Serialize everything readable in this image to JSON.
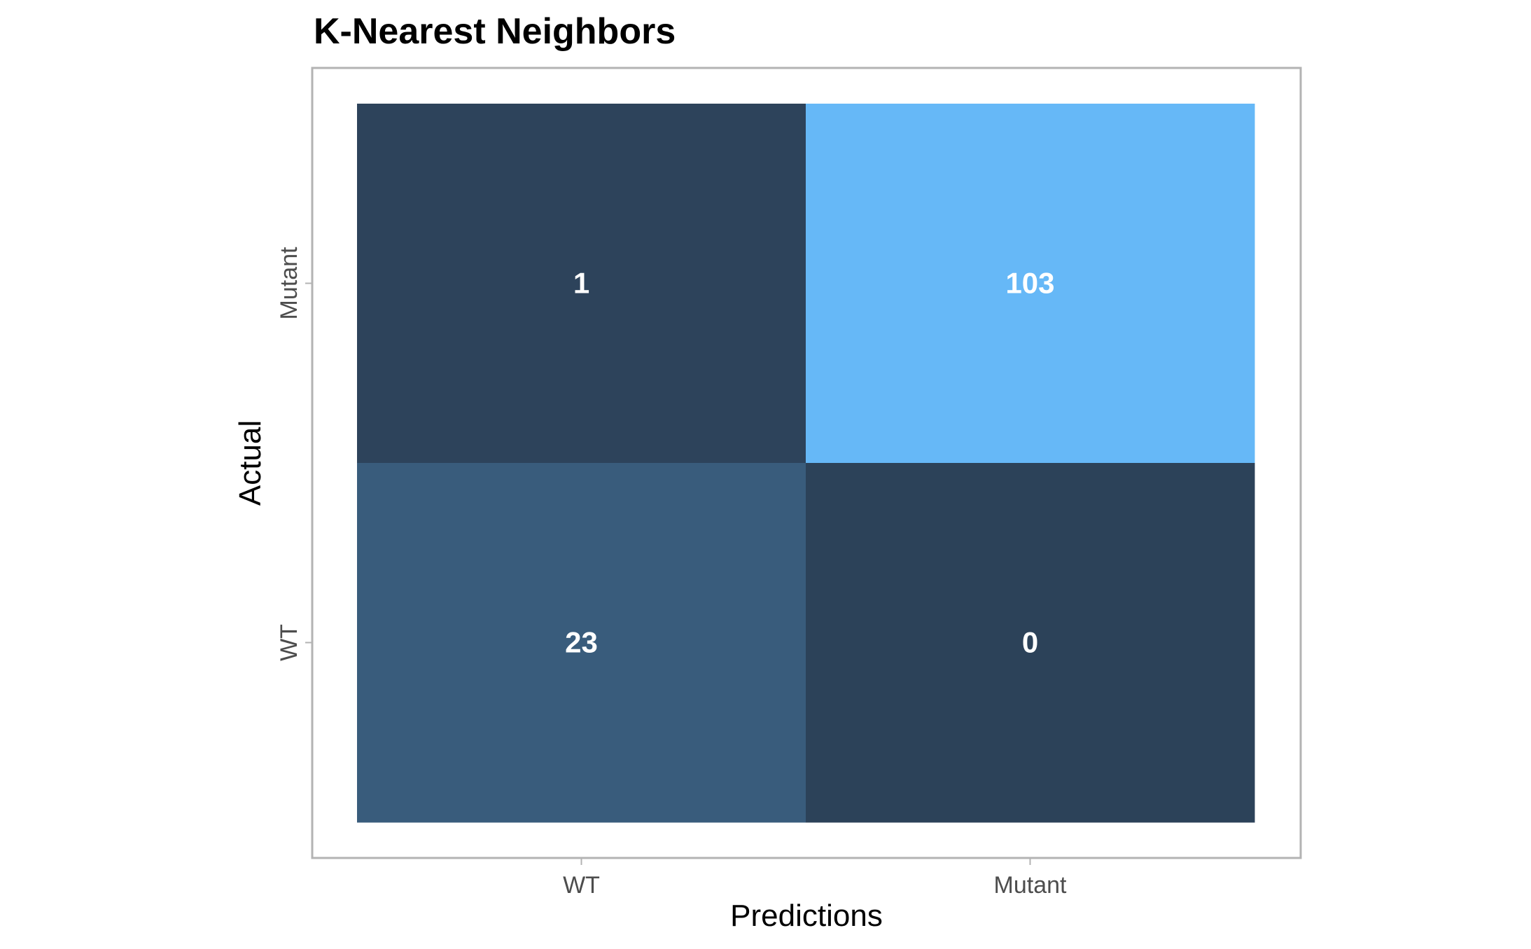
{
  "chart_data": {
    "type": "heatmap",
    "title": "K-Nearest Neighbors",
    "xlabel": "Predictions",
    "ylabel": "Actual",
    "x_categories": [
      "WT",
      "Mutant"
    ],
    "y_categories": [
      "WT",
      "Mutant"
    ],
    "cells": [
      {
        "predicted": "WT",
        "actual": "Mutant",
        "value": 1
      },
      {
        "predicted": "Mutant",
        "actual": "Mutant",
        "value": 103
      },
      {
        "predicted": "WT",
        "actual": "WT",
        "value": 23
      },
      {
        "predicted": "Mutant",
        "actual": "WT",
        "value": 0
      }
    ],
    "color_scale": {
      "low": "#2c4259",
      "high": "#66b8f7"
    },
    "grid": false,
    "legend": "none"
  }
}
